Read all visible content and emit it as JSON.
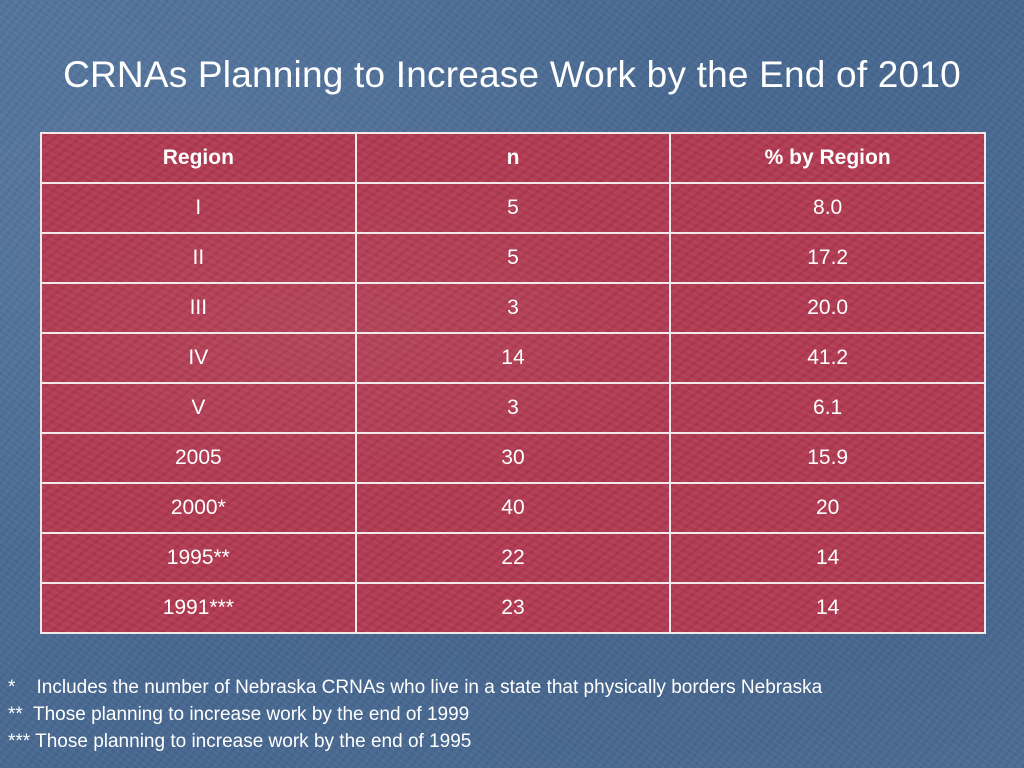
{
  "title": "CRNAs Planning to Increase Work by the End of 2010",
  "table": {
    "headers": [
      "Region",
      "n",
      "% by Region"
    ],
    "rows": [
      [
        "I",
        "5",
        "8.0"
      ],
      [
        "II",
        "5",
        "17.2"
      ],
      [
        "III",
        "3",
        "20.0"
      ],
      [
        "IV",
        "14",
        "41.2"
      ],
      [
        "V",
        "3",
        "6.1"
      ],
      [
        "2005",
        "30",
        "15.9"
      ],
      [
        "2000*",
        "40",
        "20"
      ],
      [
        "1995**",
        "22",
        "14"
      ],
      [
        "1991***",
        "23",
        "14"
      ]
    ]
  },
  "footnotes": [
    "*    Includes the number of Nebraska CRNAs who live in a state that physically borders Nebraska",
    "**  Those planning to increase work by the end of 1999",
    "*** Those planning to increase work by the end of 1995"
  ],
  "colors": {
    "background": "#4a6b96",
    "table_fill": "#b23a52",
    "table_border": "#f3e8ea",
    "text": "#ffffff"
  }
}
